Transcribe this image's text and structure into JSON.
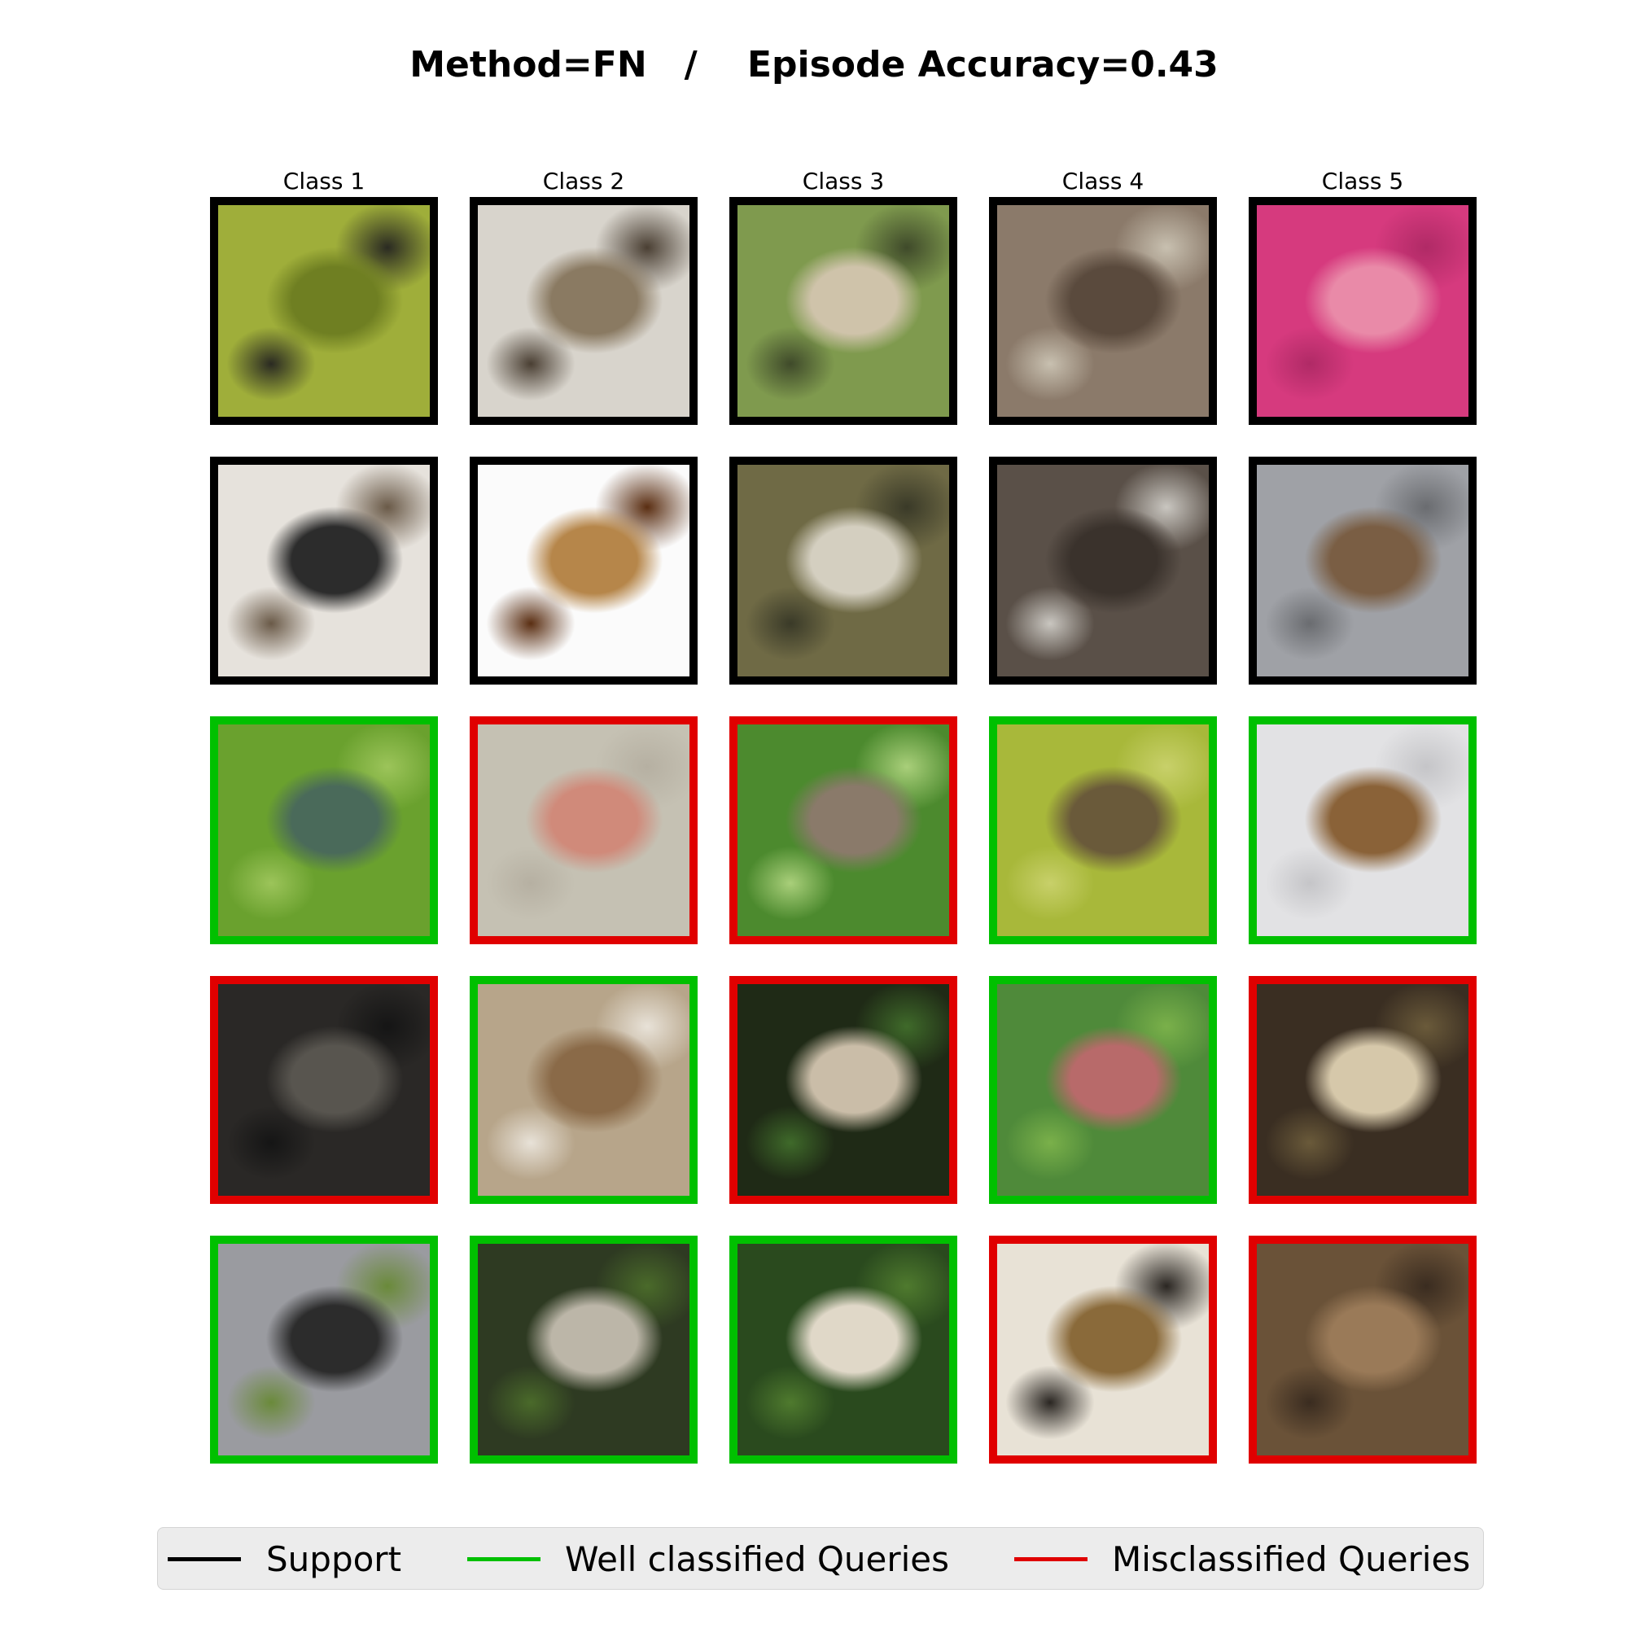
{
  "title": "Method=FN   /    Episode Accuracy=0.43",
  "classes": [
    "Class 1",
    "Class 2",
    "Class 3",
    "Class 4",
    "Class 5"
  ],
  "colors": {
    "support": "#000000",
    "well": "#00c000",
    "mis": "#e00000"
  },
  "legend": {
    "support": "Support",
    "well": "Well classified Queries",
    "mis": "Misclassified Queries"
  },
  "rows": [
    [
      "support",
      "support",
      "support",
      "support",
      "support"
    ],
    [
      "support",
      "support",
      "support",
      "support",
      "support"
    ],
    [
      "well",
      "mis",
      "mis",
      "well",
      "well"
    ],
    [
      "mis",
      "well",
      "mis",
      "well",
      "mis"
    ],
    [
      "well",
      "well",
      "well",
      "mis",
      "mis"
    ]
  ],
  "images": [
    [
      "black tongue fungus on green moss",
      "two grey-brown mushroom caps on white",
      "pale mushroom among grass",
      "brown mushrooms in dry needles",
      "pink stained microscopy slide"
    ],
    [
      "black club fungi on white background",
      "brown mushroom cap underside on white",
      "cluster of pale mushrooms in grass",
      "dark mushroom gills close-up",
      "brown mushrooms on grey surface"
    ],
    [
      "grey worm-like fungi on moss",
      "microscopy fibres with red lines",
      "brown mushrooms in green grass",
      "brown mushrooms on yellow-green moss",
      "brown mushrooms on white surface"
    ],
    [
      "black fungus on gravel",
      "brown mushrooms on wooden surface",
      "pale mushroom cap on dark background",
      "pink-capped mushroom in grass",
      "pale mushrooms in forest litter"
    ],
    [
      "black club fungi on grey background",
      "grey speckled mushroom cap in grass",
      "pale mushrooms in green grass",
      "white fungal surface close-up",
      "small brown mushroom in leaf litter"
    ]
  ]
}
